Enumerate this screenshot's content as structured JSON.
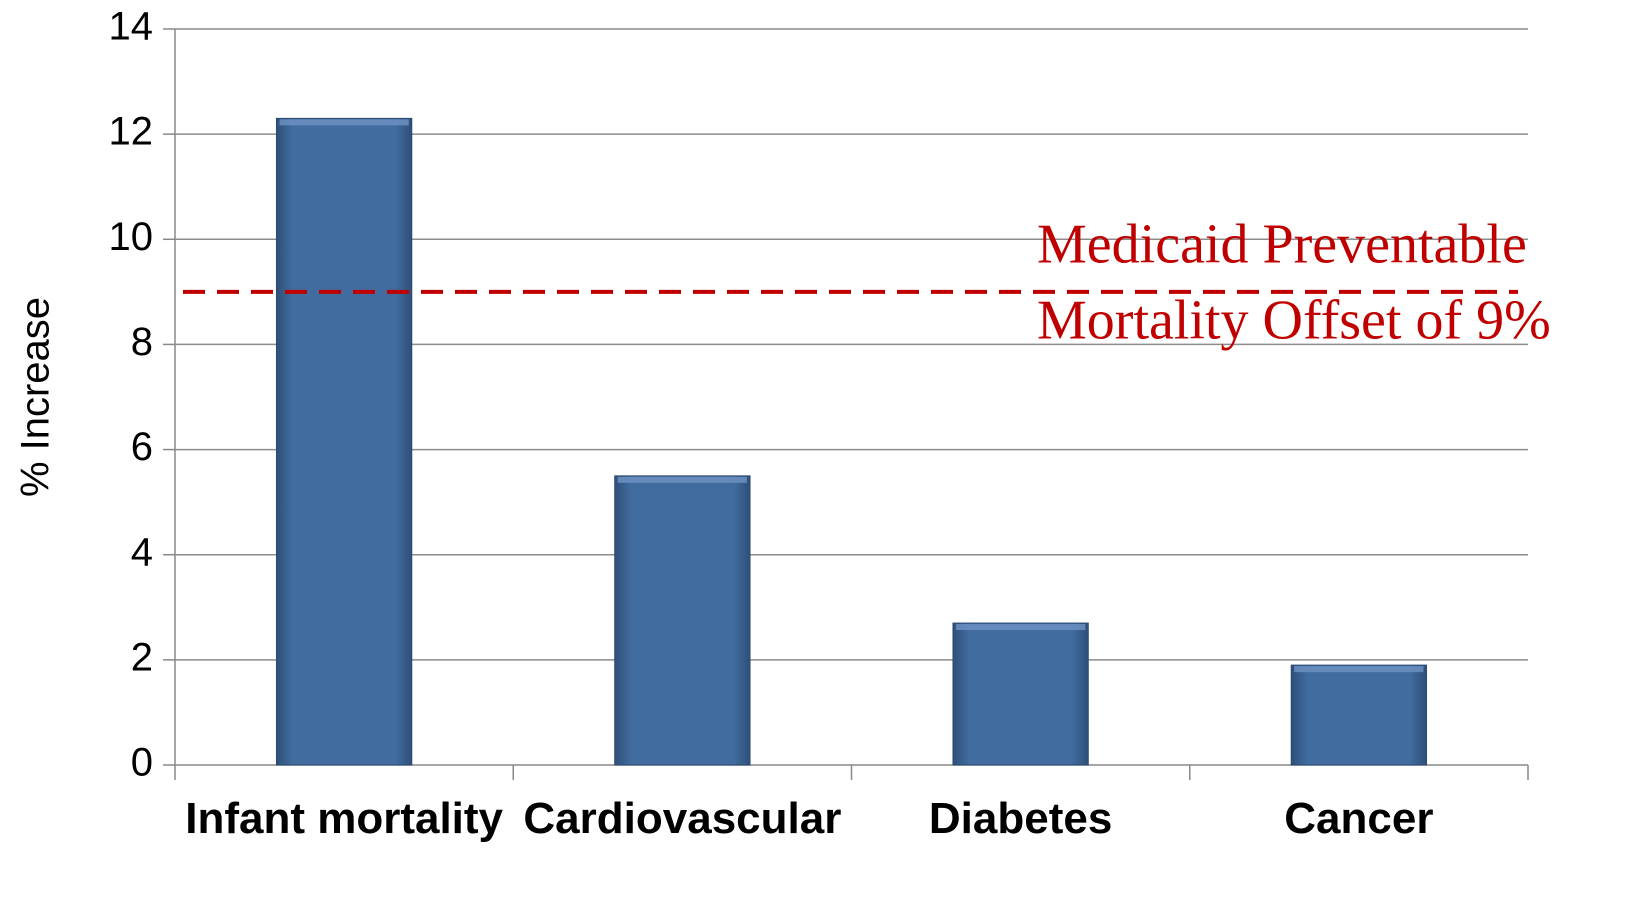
{
  "chart_data": {
    "type": "bar",
    "y_label": "% Increase",
    "categories": [
      "Infant mortality",
      "Cardiovascular",
      "Diabetes",
      "Cancer"
    ],
    "values": [
      12.3,
      5.5,
      2.7,
      1.9
    ],
    "color": "#3f6a9c",
    "ylim": [
      0,
      14
    ],
    "yticks": [
      0,
      2,
      4,
      6,
      8,
      10,
      12,
      14
    ],
    "grid": true,
    "reference_line": {
      "value": 9,
      "color": "#c00000",
      "label": [
        "Medicaid Preventable",
        "Mortality Offset of 9%"
      ]
    }
  }
}
